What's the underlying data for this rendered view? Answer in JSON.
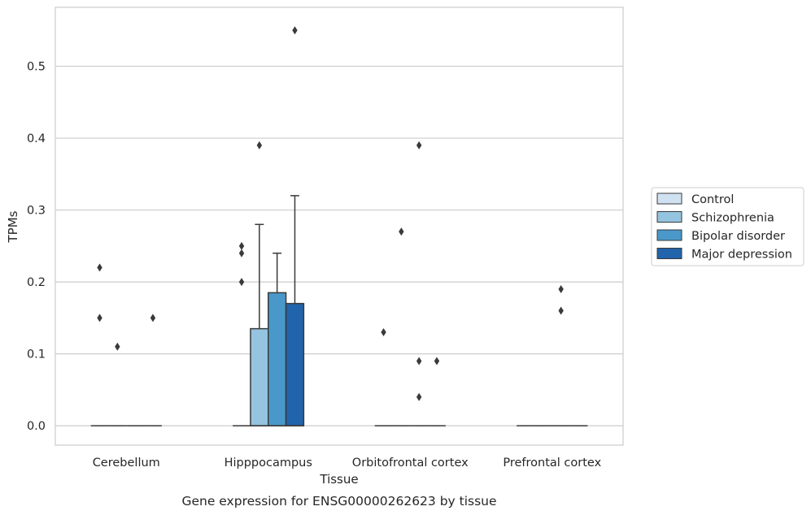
{
  "chart_data": {
    "type": "box",
    "caption": "Gene expression for ENSG00000262623 by tissue",
    "xlabel": "Tissue",
    "ylabel": "TPMs",
    "ylim": [
      -0.027,
      0.582
    ],
    "yticks": [
      0.0,
      0.1,
      0.2,
      0.3,
      0.4,
      0.5
    ],
    "ytick_labels": [
      "0.0",
      "0.1",
      "0.2",
      "0.3",
      "0.4",
      "0.5"
    ],
    "grid": "horizontal",
    "legend_position": "right",
    "categories": [
      "Cerebellum",
      "Hipppocampus",
      "Orbitofrontal cortex",
      "Prefrontal cortex"
    ],
    "series": [
      {
        "name": "Control",
        "color": "#d0e1f2",
        "boxes": [
          {
            "q1": 0,
            "median": 0,
            "q3": 0,
            "whislo": 0,
            "whishi": 0,
            "fliers": [
              0.22,
              0.15
            ]
          },
          {
            "q1": 0,
            "median": 0,
            "q3": 0,
            "whislo": 0,
            "whishi": 0,
            "fliers": [
              0.25,
              0.24,
              0.2
            ]
          },
          {
            "q1": 0,
            "median": 0,
            "q3": 0,
            "whislo": 0,
            "whishi": 0,
            "fliers": [
              0.13
            ]
          },
          {
            "q1": 0,
            "median": 0,
            "q3": 0,
            "whislo": 0,
            "whishi": 0,
            "fliers": []
          }
        ]
      },
      {
        "name": "Schizophrenia",
        "color": "#94c4df",
        "boxes": [
          {
            "q1": 0,
            "median": 0,
            "q3": 0,
            "whislo": 0,
            "whishi": 0,
            "fliers": [
              0.11
            ]
          },
          {
            "q1": 0,
            "median": 0,
            "q3": 0.135,
            "whislo": 0,
            "whishi": 0.28,
            "fliers": [
              0.39
            ]
          },
          {
            "q1": 0,
            "median": 0,
            "q3": 0,
            "whislo": 0,
            "whishi": 0,
            "fliers": [
              0.27
            ]
          },
          {
            "q1": 0,
            "median": 0,
            "q3": 0,
            "whislo": 0,
            "whishi": 0,
            "fliers": []
          }
        ]
      },
      {
        "name": "Bipolar disorder",
        "color": "#4a98c9",
        "boxes": [
          {
            "q1": 0,
            "median": 0,
            "q3": 0,
            "whislo": 0,
            "whishi": 0,
            "fliers": []
          },
          {
            "q1": 0,
            "median": 0,
            "q3": 0.185,
            "whislo": 0,
            "whishi": 0.24,
            "fliers": []
          },
          {
            "q1": 0,
            "median": 0,
            "q3": 0,
            "whislo": 0,
            "whishi": 0,
            "fliers": [
              0.39,
              0.09,
              0.04
            ]
          },
          {
            "q1": 0,
            "median": 0,
            "q3": 0,
            "whislo": 0,
            "whishi": 0,
            "fliers": [
              0.19,
              0.16
            ]
          }
        ]
      },
      {
        "name": "Major depression",
        "color": "#2164ab",
        "boxes": [
          {
            "q1": 0,
            "median": 0,
            "q3": 0,
            "whislo": 0,
            "whishi": 0,
            "fliers": [
              0.15
            ]
          },
          {
            "q1": 0,
            "median": 0,
            "q3": 0.17,
            "whislo": 0,
            "whishi": 0.32,
            "fliers": [
              0.55
            ]
          },
          {
            "q1": 0,
            "median": 0,
            "q3": 0,
            "whislo": 0,
            "whishi": 0,
            "fliers": [
              0.09
            ]
          },
          {
            "q1": 0,
            "median": 0,
            "q3": 0,
            "whislo": 0,
            "whishi": 0,
            "fliers": []
          }
        ]
      }
    ]
  }
}
